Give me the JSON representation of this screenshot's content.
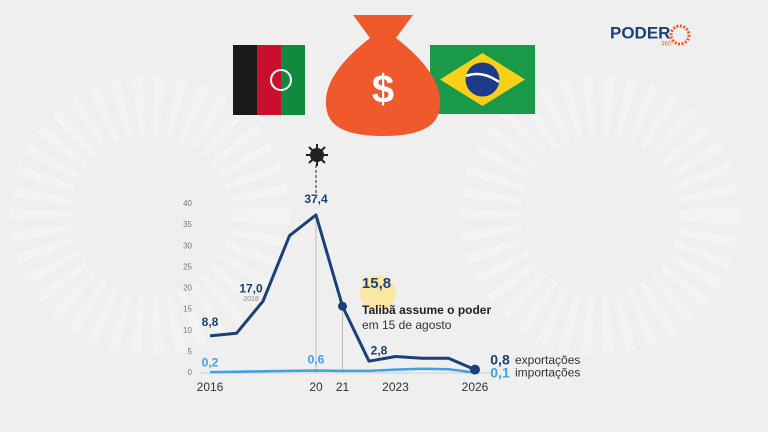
{
  "chart_data": {
    "type": "line",
    "logo": {
      "name": "PODER",
      "sub": "360"
    },
    "x": [
      2016,
      2017,
      2018,
      2019,
      2020,
      2021,
      2022,
      2023,
      2024,
      2025,
      2026
    ],
    "xlim": [
      2016,
      2026
    ],
    "xticks": [
      2016,
      {
        "value": 2020,
        "label": "20"
      },
      {
        "value": 2021,
        "label": "21"
      },
      2023,
      2026
    ],
    "ylim": [
      0,
      40
    ],
    "yticks": [
      0,
      5,
      10,
      15,
      20,
      25,
      30,
      35,
      40
    ],
    "series": [
      {
        "name": "exportações",
        "color": "#1c3f78",
        "values": [
          8.8,
          9.4,
          17.0,
          32.5,
          37.4,
          15.8,
          2.8,
          3.9,
          3.5,
          3.5,
          0.8
        ],
        "value_labels": [
          "8,8",
          null,
          "17,0",
          null,
          "37,4",
          "15,8",
          "2,8",
          null,
          null,
          null,
          "0,8"
        ]
      },
      {
        "name": "importações",
        "color": "#3ea1e2",
        "values": [
          0.2,
          0.3,
          0.4,
          0.5,
          0.6,
          0.5,
          0.5,
          0.8,
          1.0,
          0.9,
          0.1
        ],
        "value_labels": [
          "0,2",
          null,
          null,
          null,
          "0,6",
          null,
          null,
          null,
          null,
          null,
          "0,1"
        ]
      }
    ],
    "annotations": [
      "2018",
      "Talibã assume o poder",
      "em 15 de agosto"
    ]
  }
}
